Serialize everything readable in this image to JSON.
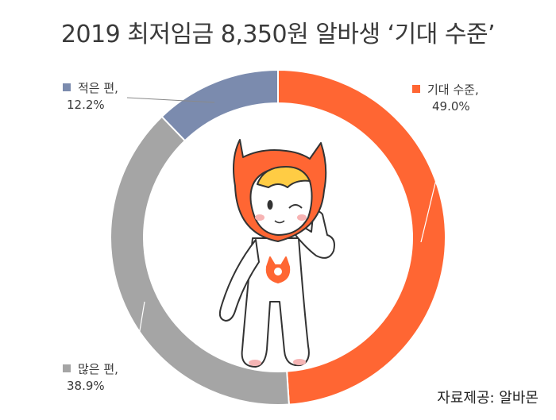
{
  "title": "2019 최저임금 8,350원 알바생 ‘기대 수준’",
  "source": "자료제공: 알바몬",
  "chart_data": {
    "type": "pie",
    "donut": true,
    "title": "2019 최저임금 8,350원 알바생 ‘기대 수준’",
    "series": [
      {
        "name": "기대 수준,",
        "value": 49.0,
        "label": "49.0%",
        "color": "#ff6633"
      },
      {
        "name": "많은 편,",
        "value": 38.9,
        "label": "38.9%",
        "color": "#a5a5a5"
      },
      {
        "name": "적은 편,",
        "value": 12.2,
        "label": "12.2%",
        "color": "#7b8bae"
      }
    ]
  },
  "mascot": {
    "name": "albamon-mascot",
    "color": "#ff6633"
  }
}
